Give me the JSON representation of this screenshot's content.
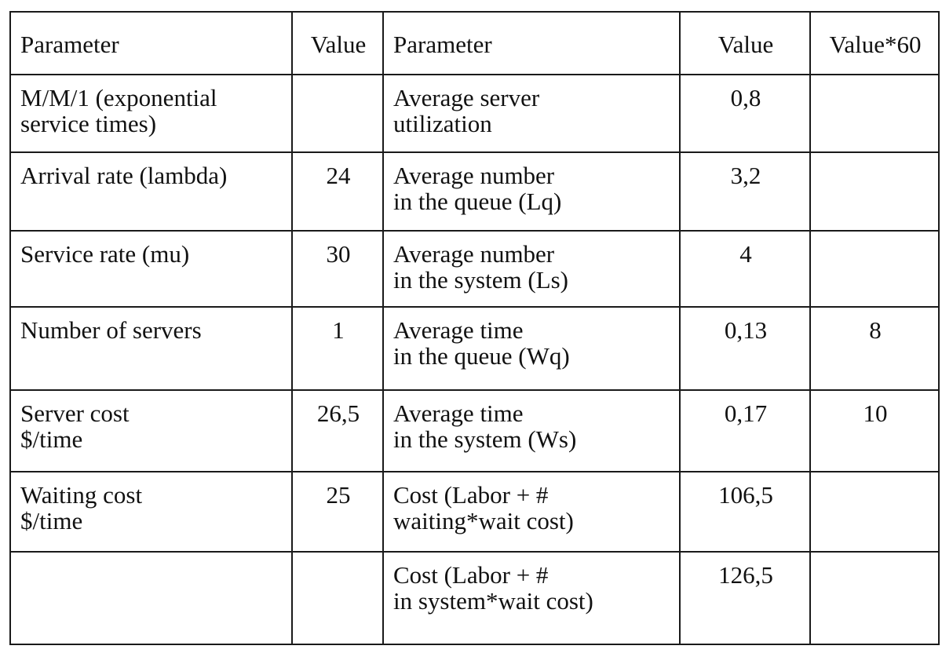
{
  "headers": [
    "Parameter",
    "Value",
    "Parameter",
    "Value",
    "Value*60"
  ],
  "rows": [
    {
      "p1": "M/M/1 (exponential\nservice times)",
      "v1": "",
      "p2": "Average server\nutilization",
      "v2": "0,8",
      "v60": ""
    },
    {
      "p1": "Arrival rate (lambda)",
      "v1": "24",
      "p2": "Average number\nin the queue (Lq)",
      "v2": "3,2",
      "v60": ""
    },
    {
      "p1": "Service rate (mu)",
      "v1": "30",
      "p2": "Average number\nin the system (Ls)",
      "v2": "4",
      "v60": ""
    },
    {
      "p1": "Number of servers",
      "v1": "1",
      "p2": "Average time\nin the queue (Wq)",
      "v2": "0,13",
      "v60": "8"
    },
    {
      "p1": "Server cost\n$/time",
      "v1": "26,5",
      "p2": "Average time\nin the system (Ws)",
      "v2": "0,17",
      "v60": "10"
    },
    {
      "p1": "Waiting cost\n$/time",
      "v1": "25",
      "p2": "Cost (Labor + #\nwaiting*wait cost)",
      "v2": "106,5",
      "v60": ""
    },
    {
      "p1": "",
      "v1": "",
      "p2": "Cost (Labor + #\nin system*wait cost)",
      "v2": "126,5",
      "v60": ""
    }
  ]
}
